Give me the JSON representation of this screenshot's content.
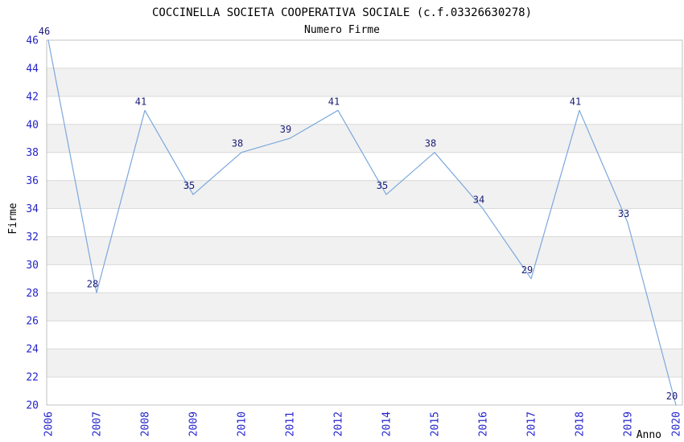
{
  "page": {
    "background": "#ffffff"
  },
  "chart_data": {
    "type": "line",
    "title": "COCCINELLA SOCIETA COOPERATIVA SOCIALE (c.f.03326630278)",
    "subtitle": "Numero Firme",
    "xlabel": "Anno",
    "ylabel": "Firme",
    "categories": [
      "2006",
      "2007",
      "2008",
      "2009",
      "2010",
      "2011",
      "2012",
      "2014",
      "2015",
      "2016",
      "2017",
      "2018",
      "2019",
      "2020"
    ],
    "values": [
      46,
      28,
      41,
      35,
      38,
      39,
      41,
      35,
      38,
      34,
      29,
      41,
      33,
      20
    ],
    "series": [
      {
        "name": "Numero Firme",
        "values": [
          46,
          28,
          41,
          35,
          38,
          39,
          41,
          35,
          38,
          34,
          29,
          41,
          33,
          20
        ]
      }
    ],
    "ylim": [
      20,
      46
    ],
    "ytick_step": 2,
    "grid": true,
    "legend_position": "none",
    "style": {
      "line_color": "#7CA8DC",
      "tick_label_color": "#2424CC",
      "data_label_color": "#1C1C78",
      "grid_color": "#D9D9D9",
      "border_color": "#C0C0C0",
      "band_color": "#F1F1F1",
      "title_color": "#000000",
      "axis_label_color": "#000000",
      "plot_background": "#FFFFFF"
    }
  }
}
